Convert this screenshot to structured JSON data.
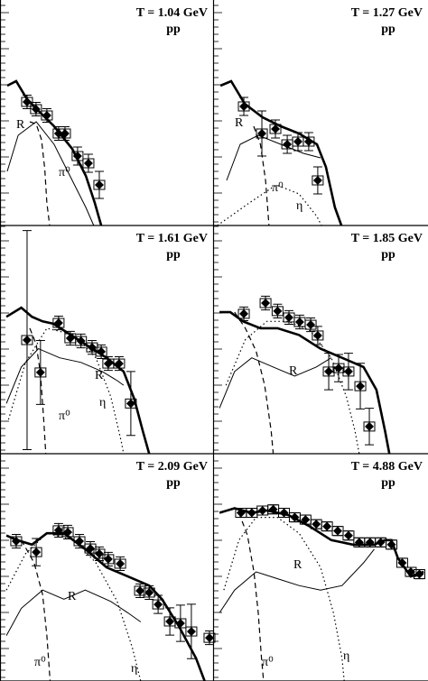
{
  "chart_data": [
    {
      "type": "scatter",
      "title": "T = 1.04 GeV",
      "subtitle": "pp",
      "xlim": [
        0,
        100
      ],
      "ylim": [
        0,
        100
      ],
      "x": [
        12.7,
        16.9,
        22,
        27.5,
        30.5,
        36.4,
        41.5,
        46.6
      ],
      "values": [
        54.8,
        51.6,
        48.8,
        40.8,
        40.8,
        30.8,
        27.6,
        18
      ],
      "errors": [
        3,
        3,
        3,
        3,
        3,
        4,
        4,
        6
      ],
      "curves": [
        {
          "style": "thick",
          "x": [
            3.4,
            7.6,
            12.7,
            19,
            25.4,
            33.9,
            40.3,
            44.5,
            47.5
          ],
          "y": [
            62,
            64,
            56,
            50,
            44,
            34,
            22,
            10,
            0
          ]
        },
        {
          "style": "dashed",
          "x": [
            14,
            17,
            19.5,
            21,
            22,
            23.3
          ],
          "y": [
            46,
            45,
            38,
            25,
            10,
            0
          ]
        },
        {
          "style": "thin",
          "x": [
            3.4,
            8.5,
            17,
            25.4,
            33.9,
            40.3,
            44
          ],
          "y": [
            24,
            40,
            46,
            36,
            20,
            8,
            0
          ]
        }
      ],
      "annotations": [
        "R",
        "π⁰"
      ]
    },
    {
      "type": "scatter",
      "title": "T = 1.27 GeV",
      "subtitle": "pp",
      "xlim": [
        0,
        100
      ],
      "ylim": [
        0,
        100
      ],
      "x": [
        14.3,
        22.7,
        29,
        34.5,
        39.5,
        44.5,
        48.7
      ],
      "values": [
        52.8,
        40.8,
        42.8,
        36,
        37.2,
        37.2,
        20
      ],
      "errors": [
        4,
        10,
        4,
        4,
        4,
        4,
        6
      ],
      "curves": [
        {
          "style": "thick",
          "x": [
            3.4,
            8.4,
            14.7,
            23,
            31.5,
            40,
            48.3,
            52.5,
            56.7,
            59.7
          ],
          "y": [
            62,
            64,
            54,
            48,
            44,
            40.8,
            36,
            26,
            8,
            0
          ]
        },
        {
          "style": "dashed",
          "x": [
            18.9,
            22,
            24.4,
            26
          ],
          "y": [
            44,
            36,
            20,
            0
          ]
        },
        {
          "style": "dotted",
          "x": [
            2,
            16.8,
            29.4,
            40,
            48.3,
            50.4
          ],
          "y": [
            0,
            10,
            18,
            14,
            4,
            0
          ]
        },
        {
          "style": "thin",
          "x": [
            6.3,
            12.6,
            21,
            31.5,
            42,
            50
          ],
          "y": [
            20,
            36,
            40,
            36,
            32,
            30
          ]
        }
      ],
      "annotations": [
        "R",
        "π⁰",
        "η"
      ]
    },
    {
      "type": "scatter",
      "title": "T = 1.61 GeV",
      "subtitle": "pp",
      "xlim": [
        0,
        100
      ],
      "ylim": [
        0,
        100
      ],
      "x": [
        12.7,
        19,
        27.5,
        33,
        38,
        43.2,
        47.5,
        50.8,
        55.9,
        61.4
      ],
      "values": [
        49.8,
        35.6,
        57.3,
        50.6,
        49.4,
        46.6,
        44.7,
        39.5,
        39.5,
        22
      ],
      "errors": [
        48,
        14,
        3,
        3,
        3,
        3,
        3,
        3,
        3,
        14
      ],
      "curves": [
        {
          "style": "thick",
          "x": [
            3,
            10,
            15,
            20,
            25,
            30,
            40,
            50,
            58,
            63,
            67,
            70
          ],
          "y": [
            60,
            64,
            60,
            58,
            57,
            54,
            48,
            42,
            36,
            24,
            10,
            0
          ]
        },
        {
          "style": "dashed",
          "x": [
            14,
            17,
            19,
            20.5,
            21.5
          ],
          "y": [
            55,
            48,
            35,
            15,
            0
          ]
        },
        {
          "style": "dotted",
          "x": [
            4,
            12,
            22,
            35,
            45,
            52,
            57,
            58
          ],
          "y": [
            15,
            40,
            55,
            52,
            42,
            25,
            5,
            0
          ]
        },
        {
          "style": "thin",
          "x": [
            3,
            10,
            18,
            28,
            38,
            48,
            55,
            58
          ],
          "y": [
            22,
            38,
            46,
            42,
            40,
            36,
            32,
            30
          ]
        }
      ],
      "annotations": [
        "R",
        "π⁰",
        "η"
      ]
    },
    {
      "type": "scatter",
      "title": "T = 1.85 GeV",
      "subtitle": "pp",
      "xlim": [
        0,
        100
      ],
      "ylim": [
        0,
        100
      ],
      "x": [
        14.3,
        24.4,
        30,
        35.3,
        40.3,
        45.4,
        48.7,
        53.8,
        58.4,
        63,
        68.5,
        72.7
      ],
      "values": [
        61.3,
        66,
        62.5,
        59.7,
        57.7,
        56.5,
        51.8,
        36,
        37.5,
        36,
        29.6,
        11.9
      ],
      "errors": [
        3,
        3,
        3,
        3,
        3,
        3,
        4,
        8,
        6,
        8,
        10,
        8
      ],
      "curves": [
        {
          "style": "thick",
          "x": [
            3,
            8,
            14,
            22,
            30,
            40,
            50,
            60,
            70,
            76,
            80,
            82
          ],
          "y": [
            62,
            62,
            58,
            55,
            55,
            52,
            46,
            42,
            38,
            28,
            10,
            0
          ]
        },
        {
          "style": "dashed",
          "x": [
            10,
            15,
            20,
            24,
            27,
            28
          ],
          "y": [
            62,
            55,
            45,
            30,
            10,
            0
          ]
        },
        {
          "style": "dotted",
          "x": [
            6,
            15,
            25,
            35,
            45,
            55,
            62,
            66,
            68
          ],
          "y": [
            30,
            50,
            58,
            58,
            54,
            42,
            25,
            10,
            0
          ]
        },
        {
          "style": "thin",
          "x": [
            3,
            10,
            18,
            28,
            38,
            48,
            55
          ],
          "y": [
            20,
            36,
            42,
            38,
            34,
            38,
            42
          ]
        }
      ],
      "annotations": [
        "R"
      ]
    },
    {
      "type": "scatter",
      "title": "T = 2.09 GeV",
      "subtitle": "pp",
      "xlim": [
        0,
        100
      ],
      "ylim": [
        0,
        100
      ],
      "x": [
        7.6,
        17,
        27.5,
        31.8,
        37.3,
        42.4,
        46.6,
        50.8,
        56.4,
        65.7,
        70,
        74.2,
        79.7,
        84.7,
        89.8,
        98.3
      ],
      "values": [
        61.5,
        56.7,
        66.3,
        65.5,
        61.5,
        58.3,
        56,
        53.6,
        51.6,
        39.7,
        38.9,
        33.7,
        26.2,
        25.4,
        21.8,
        19
      ],
      "errors": [
        3,
        6,
        3,
        3,
        3,
        3,
        3,
        3,
        3,
        3,
        3,
        4,
        6,
        8,
        12,
        3
      ],
      "curves": [
        {
          "style": "thick",
          "x": [
            3,
            8,
            15,
            22,
            30,
            40,
            50,
            60,
            70,
            76,
            84,
            92,
            96
          ],
          "y": [
            64,
            62,
            60,
            65,
            65,
            58,
            50,
            46,
            42,
            36,
            24,
            10,
            0
          ]
        },
        {
          "style": "dashed",
          "x": [
            10,
            16,
            20,
            22,
            23.5
          ],
          "y": [
            62,
            52,
            38,
            20,
            0
          ]
        },
        {
          "style": "dotted",
          "x": [
            3,
            12,
            22,
            35,
            45,
            55,
            62,
            66
          ],
          "y": [
            40,
            56,
            65,
            62,
            52,
            35,
            15,
            0
          ]
        },
        {
          "style": "thin",
          "x": [
            3,
            10,
            20,
            30,
            40,
            52,
            60,
            66
          ],
          "y": [
            20,
            32,
            40,
            36,
            40,
            35,
            30,
            26
          ]
        }
      ],
      "annotations": [
        "R",
        "π⁰",
        "η"
      ]
    },
    {
      "type": "scatter",
      "title": "T = 4.88 GeV",
      "subtitle": "pp",
      "xlim": [
        0,
        100
      ],
      "ylim": [
        0,
        100
      ],
      "x": [
        13,
        18,
        23,
        28,
        33,
        38,
        43,
        48,
        53,
        58,
        63,
        68,
        73,
        78,
        83,
        88,
        92,
        96
      ],
      "values": [
        74,
        74,
        75,
        75.5,
        74,
        72,
        71,
        69,
        68,
        66,
        64,
        61,
        61,
        61,
        60,
        52,
        48,
        47
      ],
      "errors": [
        2,
        2,
        2,
        2,
        2,
        2,
        2,
        2,
        2,
        2,
        2,
        2,
        2,
        2,
        2,
        2,
        2,
        2
      ],
      "curves": [
        {
          "style": "thick",
          "x": [
            3,
            10,
            18,
            25,
            35,
            45,
            55,
            65,
            75,
            80,
            83,
            86,
            92,
            98
          ],
          "y": [
            74,
            76,
            74,
            75,
            73,
            68,
            62,
            60,
            60,
            62,
            62,
            54,
            46,
            48
          ]
        },
        {
          "style": "dashed",
          "x": [
            12,
            16,
            19,
            21,
            22.5,
            23.5
          ],
          "y": [
            74,
            64,
            48,
            30,
            10,
            0
          ]
        },
        {
          "style": "dotted",
          "x": [
            5,
            12,
            20,
            30,
            40,
            50,
            56,
            60,
            61
          ],
          "y": [
            40,
            62,
            72,
            72,
            65,
            50,
            30,
            10,
            0
          ]
        },
        {
          "style": "thin",
          "x": [
            3,
            10,
            20,
            30,
            40,
            50,
            60,
            70,
            75
          ],
          "y": [
            30,
            40,
            48,
            45,
            42,
            40,
            42,
            52,
            58
          ]
        }
      ],
      "annotations": [
        "R",
        "π⁰",
        "η"
      ]
    }
  ]
}
